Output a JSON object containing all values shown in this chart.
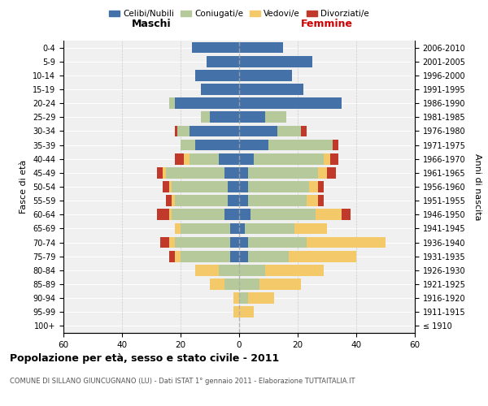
{
  "age_groups": [
    "100+",
    "95-99",
    "90-94",
    "85-89",
    "80-84",
    "75-79",
    "70-74",
    "65-69",
    "60-64",
    "55-59",
    "50-54",
    "45-49",
    "40-44",
    "35-39",
    "30-34",
    "25-29",
    "20-24",
    "15-19",
    "10-14",
    "5-9",
    "0-4"
  ],
  "birth_years": [
    "≤ 1910",
    "1911-1915",
    "1916-1920",
    "1921-1925",
    "1926-1930",
    "1931-1935",
    "1936-1940",
    "1941-1945",
    "1946-1950",
    "1951-1955",
    "1956-1960",
    "1961-1965",
    "1966-1970",
    "1971-1975",
    "1976-1980",
    "1981-1985",
    "1986-1990",
    "1991-1995",
    "1996-2000",
    "2001-2005",
    "2006-2010"
  ],
  "maschi": {
    "celibi": [
      0,
      0,
      0,
      0,
      0,
      3,
      3,
      3,
      5,
      4,
      4,
      5,
      7,
      15,
      17,
      10,
      22,
      13,
      15,
      11,
      16
    ],
    "coniugati": [
      0,
      0,
      0,
      5,
      7,
      17,
      19,
      17,
      18,
      18,
      19,
      20,
      10,
      5,
      4,
      3,
      2,
      0,
      0,
      0,
      0
    ],
    "vedovi": [
      0,
      2,
      2,
      5,
      8,
      2,
      2,
      2,
      1,
      1,
      1,
      1,
      2,
      0,
      0,
      0,
      0,
      0,
      0,
      0,
      0
    ],
    "divorziati": [
      0,
      0,
      0,
      0,
      0,
      2,
      3,
      0,
      4,
      2,
      2,
      2,
      3,
      0,
      1,
      0,
      0,
      0,
      0,
      0,
      0
    ]
  },
  "femmine": {
    "nubili": [
      0,
      0,
      0,
      0,
      0,
      3,
      3,
      2,
      4,
      3,
      3,
      3,
      5,
      10,
      13,
      9,
      35,
      22,
      18,
      25,
      15
    ],
    "coniugate": [
      0,
      0,
      3,
      7,
      9,
      14,
      20,
      17,
      22,
      20,
      21,
      24,
      24,
      22,
      8,
      7,
      0,
      0,
      0,
      0,
      0
    ],
    "vedove": [
      0,
      5,
      9,
      14,
      20,
      23,
      27,
      11,
      9,
      4,
      3,
      3,
      2,
      0,
      0,
      0,
      0,
      0,
      0,
      0,
      0
    ],
    "divorziate": [
      0,
      0,
      0,
      0,
      0,
      0,
      0,
      0,
      3,
      2,
      2,
      3,
      3,
      2,
      2,
      0,
      0,
      0,
      0,
      0,
      0
    ]
  },
  "colors": {
    "celibi": "#4472a8",
    "coniugati": "#b5c99a",
    "vedovi": "#f4c96a",
    "divorziati": "#c0392b"
  },
  "title": "Popolazione per età, sesso e stato civile - 2011",
  "subtitle": "COMUNE DI SILLANO GIUNCUGNANO (LU) - Dati ISTAT 1° gennaio 2011 - Elaborazione TUTTAITALIA.IT",
  "xlabel_left": "Maschi",
  "xlabel_right": "Femmine",
  "ylabel_left": "Fasce di età",
  "ylabel_right": "Anni di nascita",
  "xlim": 60,
  "background_color": "#f0f0f0",
  "legend_labels": [
    "Celibi/Nubili",
    "Coniugati/e",
    "Vedovi/e",
    "Divorziati/e"
  ]
}
